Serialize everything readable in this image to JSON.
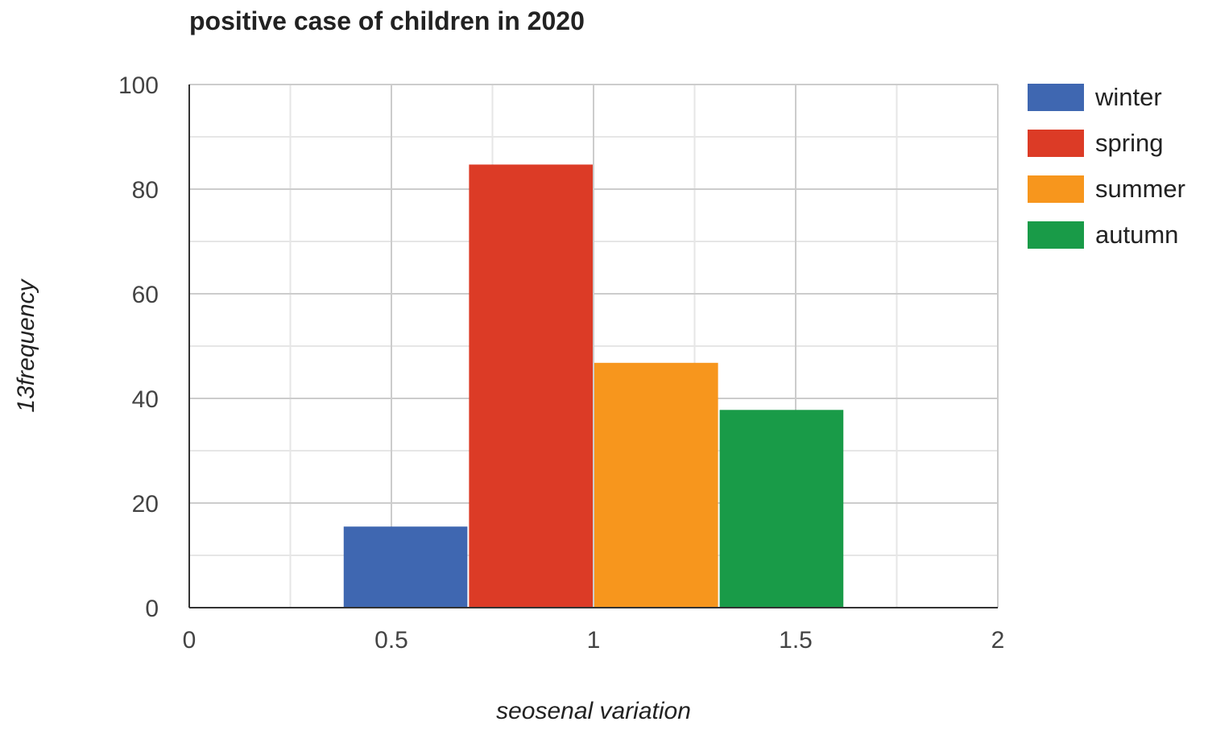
{
  "chart_data": {
    "type": "bar",
    "title": "positive case of children in 2020",
    "xlabel": "seosenal variation",
    "ylabel": "13frequency",
    "xlim": [
      0,
      2
    ],
    "ylim": [
      0,
      100
    ],
    "x_ticks": [
      "0",
      "0.5",
      "1",
      "1.5",
      "2"
    ],
    "y_ticks": [
      "0",
      "20",
      "40",
      "60",
      "80",
      "100"
    ],
    "grid": true,
    "legend_position": "right",
    "series": [
      {
        "name": "winter",
        "color": "#3f67b1",
        "x_start": 0.38,
        "x_end": 0.69,
        "value": 15.5
      },
      {
        "name": "spring",
        "color": "#dc3b26",
        "x_start": 0.69,
        "x_end": 1.0,
        "value": 84.7
      },
      {
        "name": "summer",
        "color": "#f7961d",
        "x_start": 1.0,
        "x_end": 1.31,
        "value": 46.8
      },
      {
        "name": "autumn",
        "color": "#199b48",
        "x_start": 1.31,
        "x_end": 1.62,
        "value": 37.8
      }
    ]
  }
}
